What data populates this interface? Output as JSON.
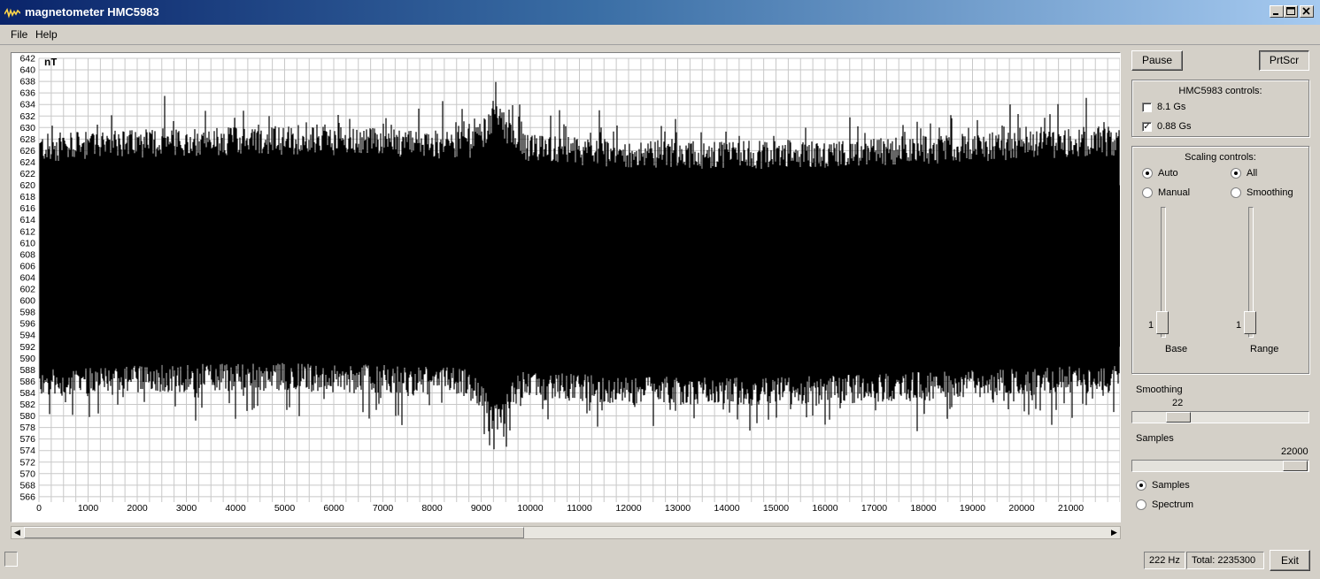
{
  "window": {
    "title": "magnetometer HMC5983",
    "minimize": "_",
    "maximize": "□",
    "close": "✕"
  },
  "menu": {
    "file": "File",
    "help": "Help"
  },
  "plot": {
    "unit": "nT",
    "y_ticks": [
      642,
      640,
      638,
      636,
      634,
      632,
      630,
      628,
      626,
      624,
      622,
      620,
      618,
      616,
      614,
      612,
      610,
      608,
      606,
      604,
      602,
      600,
      598,
      596,
      594,
      592,
      590,
      588,
      586,
      584,
      582,
      580,
      578,
      576,
      574,
      572,
      570,
      568,
      566
    ],
    "x_ticks": [
      0,
      1000,
      2000,
      3000,
      4000,
      5000,
      6000,
      7000,
      8000,
      9000,
      10000,
      11000,
      12000,
      13000,
      14000,
      15000,
      16000,
      17000,
      18000,
      19000,
      20000,
      21000
    ]
  },
  "buttons": {
    "pause": "Pause",
    "prtscr": "PrtScr",
    "exit": "Exit"
  },
  "hmc_controls": {
    "title": "HMC5983 controls:",
    "opt1": "8.1 Gs",
    "opt2": "0.88 Gs"
  },
  "scaling": {
    "title": "Scaling controls:",
    "auto": "Auto",
    "manual": "Manual",
    "all": "All",
    "smoothing": "Smoothing",
    "base_value": "1",
    "range_value": "1",
    "base": "Base",
    "range": "Range"
  },
  "smoothing": {
    "label": "Smoothing",
    "value": "22"
  },
  "samples": {
    "label": "Samples",
    "value": "22000"
  },
  "mode": {
    "samples": "Samples",
    "spectrum": "Spectrum"
  },
  "status": {
    "rate": "222 Hz",
    "total": "Total: 2235300"
  }
}
